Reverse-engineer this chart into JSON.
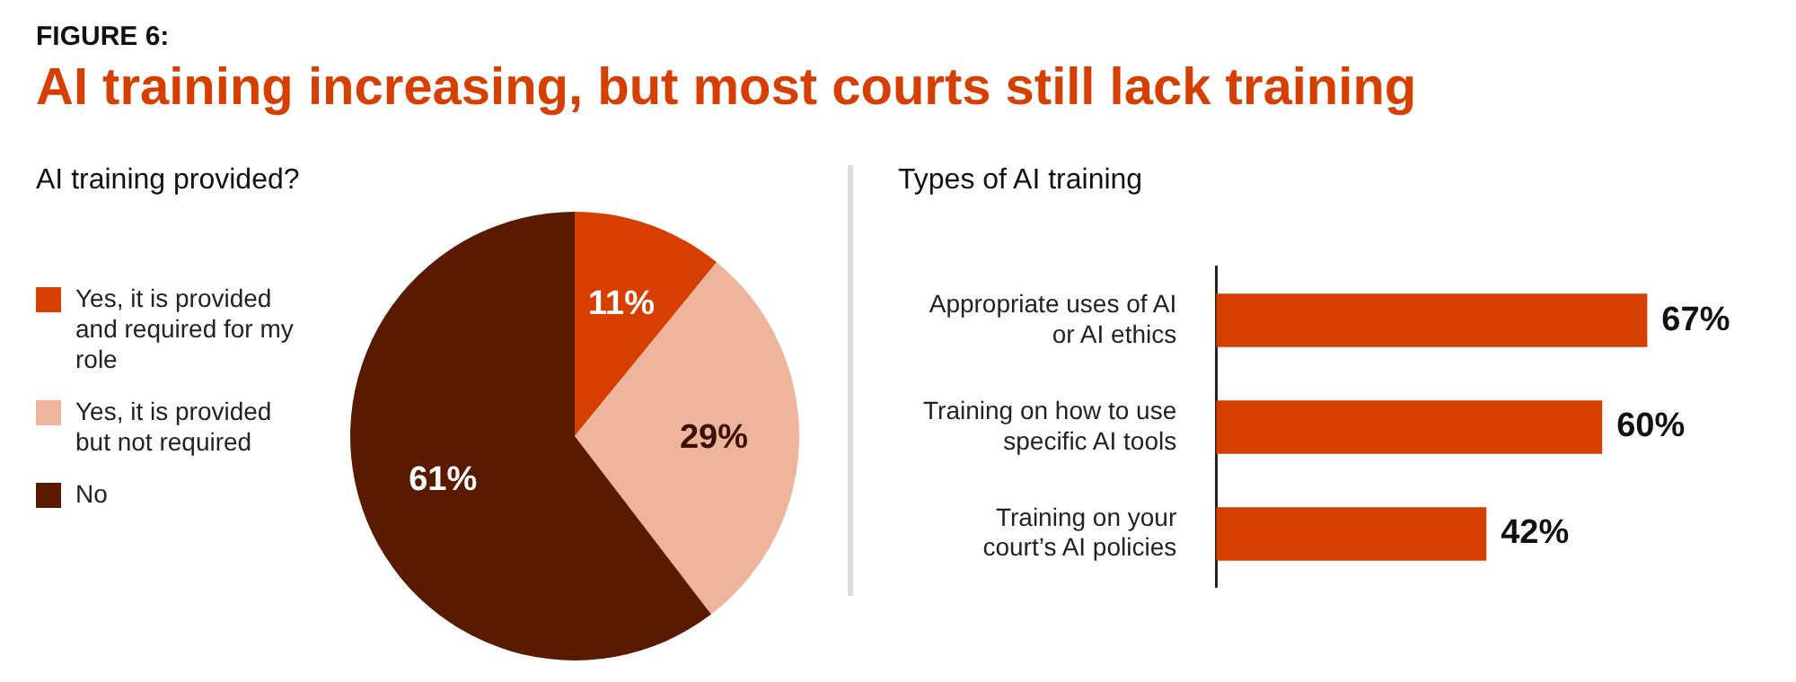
{
  "chart_data": [
    {
      "type": "other",
      "title": "AI training increasing, but most courts still lack training",
      "annotations": [
        "FIGURE 6:"
      ]
    },
    {
      "type": "pie",
      "title": "AI training provided?",
      "categories": [
        "Yes, it is provided and required for my role",
        "Yes, it is provided but not required",
        "No"
      ],
      "values": [
        11,
        29,
        61
      ],
      "value_labels": [
        "11%",
        "29%",
        "61%"
      ],
      "colors": [
        "#d63f00",
        "#efb59c",
        "#5a1a00"
      ],
      "legend": "left"
    },
    {
      "type": "bar",
      "orientation": "horizontal",
      "title": "Types of AI training",
      "categories": [
        "Appropriate uses of AI or AI ethics",
        "Training on how to use specific AI tools",
        "Training on your court’s AI policies"
      ],
      "values": [
        67,
        60,
        42
      ],
      "value_labels": [
        "67%",
        "60%",
        "42%"
      ],
      "color": "#d63f00"
    }
  ]
}
